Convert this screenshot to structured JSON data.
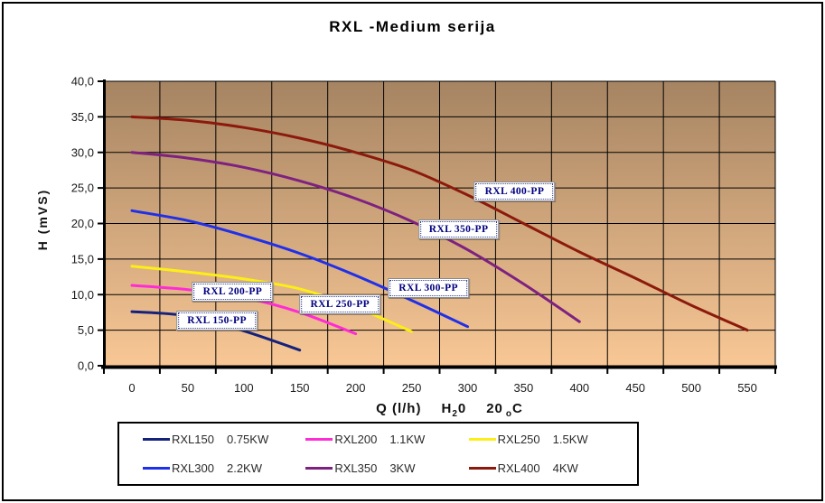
{
  "chart_data": {
    "type": "line",
    "title": "RXL -Medium serija",
    "ylabel": "H (mVS)",
    "xlabel_parts": {
      "flow": "Q  (l/h)",
      "h2o_main": "H",
      "h2o_sub": "2",
      "h2o_tail": "0",
      "temp_value": "20",
      "temp_sub": "o",
      "temp_unit": "C"
    },
    "x_tick_labels": [
      "0",
      "50",
      "100",
      "150",
      "200",
      "250",
      "300",
      "350",
      "400",
      "450",
      "500",
      "550"
    ],
    "y_tick_labels": [
      "0,0",
      "5,0",
      "10,0",
      "15,0",
      "20,0",
      "25,0",
      "30,0",
      "35,0",
      "40,0"
    ],
    "x_unit_per_tick": 50,
    "ylim": [
      0,
      40
    ],
    "grid": true,
    "legend_position": "bottom",
    "plot_background": {
      "top_color": "#A68462",
      "bottom_color": "#F8C795"
    },
    "axis_color": "#000000",
    "grid_color": "#000000",
    "series": [
      {
        "name": "RXL150",
        "power": "0.75KW",
        "color": "#15227C",
        "points": [
          [
            0,
            7.6
          ],
          [
            50,
            7.0
          ],
          [
            100,
            4.9
          ],
          [
            150,
            2.2
          ]
        ]
      },
      {
        "name": "RXL200",
        "power": "1.1KW",
        "color": "#FF2BD6",
        "points": [
          [
            0,
            11.3
          ],
          [
            50,
            10.7
          ],
          [
            100,
            9.6
          ],
          [
            150,
            7.5
          ],
          [
            200,
            4.5
          ]
        ]
      },
      {
        "name": "RXL250",
        "power": "1.5KW",
        "color": "#FBEF16",
        "points": [
          [
            0,
            14.0
          ],
          [
            50,
            13.2
          ],
          [
            100,
            12.2
          ],
          [
            150,
            10.8
          ],
          [
            200,
            8.2
          ],
          [
            250,
            4.8
          ]
        ]
      },
      {
        "name": "RXL300",
        "power": "2.2KW",
        "color": "#2030E8",
        "points": [
          [
            0,
            21.8
          ],
          [
            50,
            20.4
          ],
          [
            100,
            18.3
          ],
          [
            150,
            15.8
          ],
          [
            200,
            12.7
          ],
          [
            250,
            9.2
          ],
          [
            300,
            5.5
          ]
        ]
      },
      {
        "name": "RXL350",
        "power": "3KW",
        "color": "#7E2180",
        "points": [
          [
            0,
            30.0
          ],
          [
            50,
            29.2
          ],
          [
            100,
            27.9
          ],
          [
            150,
            26.0
          ],
          [
            200,
            23.5
          ],
          [
            250,
            20.3
          ],
          [
            300,
            16.3
          ],
          [
            350,
            11.5
          ],
          [
            400,
            6.2
          ]
        ]
      },
      {
        "name": "RXL400",
        "power": "4KW",
        "color": "#8C1A0C",
        "points": [
          [
            0,
            35.0
          ],
          [
            50,
            34.5
          ],
          [
            100,
            33.5
          ],
          [
            150,
            32.0
          ],
          [
            200,
            30.0
          ],
          [
            250,
            27.5
          ],
          [
            300,
            24.0
          ],
          [
            350,
            20.0
          ],
          [
            400,
            16.0
          ],
          [
            450,
            12.3
          ],
          [
            500,
            8.5
          ],
          [
            550,
            5.0
          ]
        ]
      }
    ],
    "annotations": [
      {
        "text": "RXL 150-PP",
        "q": 76,
        "h": 6.3
      },
      {
        "text": "RXL 200-PP",
        "q": 90,
        "h": 10.4
      },
      {
        "text": "RXL 250-PP",
        "q": 186,
        "h": 8.6
      },
      {
        "text": "RXL 300-PP",
        "q": 265,
        "h": 10.9
      },
      {
        "text": "RXL 350-PP",
        "q": 292,
        "h": 19.2
      },
      {
        "text": "RXL 400-PP",
        "q": 342,
        "h": 24.5
      }
    ]
  }
}
